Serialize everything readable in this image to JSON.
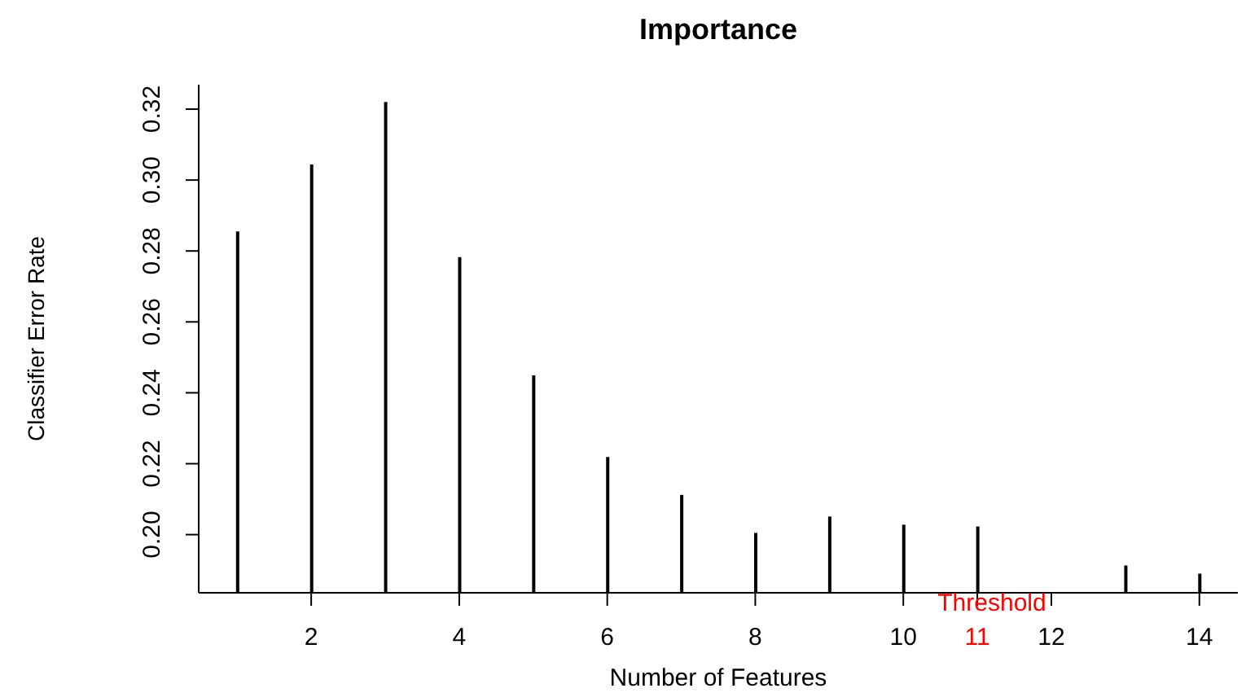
{
  "chart_data": {
    "type": "bar",
    "title": "Importance",
    "xlabel": "Number of Features",
    "ylabel": "Classifier Error Rate",
    "x": [
      1,
      2,
      3,
      4,
      5,
      6,
      7,
      8,
      9,
      10,
      11,
      12,
      13,
      14
    ],
    "values": [
      0.2855,
      0.3044,
      0.322,
      0.2783,
      0.2449,
      0.2219,
      0.2112,
      0.2005,
      0.2051,
      0.2028,
      0.2023,
      null,
      0.1913,
      0.189
    ],
    "color": "#000000",
    "xlim": [
      0.48,
      14.52
    ],
    "xticks": [
      2,
      4,
      6,
      8,
      10,
      {
        "value": 11,
        "label": "11"
      },
      12,
      14
    ],
    "ylim": [
      0.1836,
      0.3269
    ],
    "yticks": [
      {
        "value": 0.2,
        "label": "0.20"
      },
      0.22,
      0.24,
      0.26,
      0.28,
      {
        "value": 0.3,
        "label": "0.30"
      },
      0.32
    ],
    "annotations": [
      "Threshold"
    ],
    "grid": false,
    "legend": false
  }
}
